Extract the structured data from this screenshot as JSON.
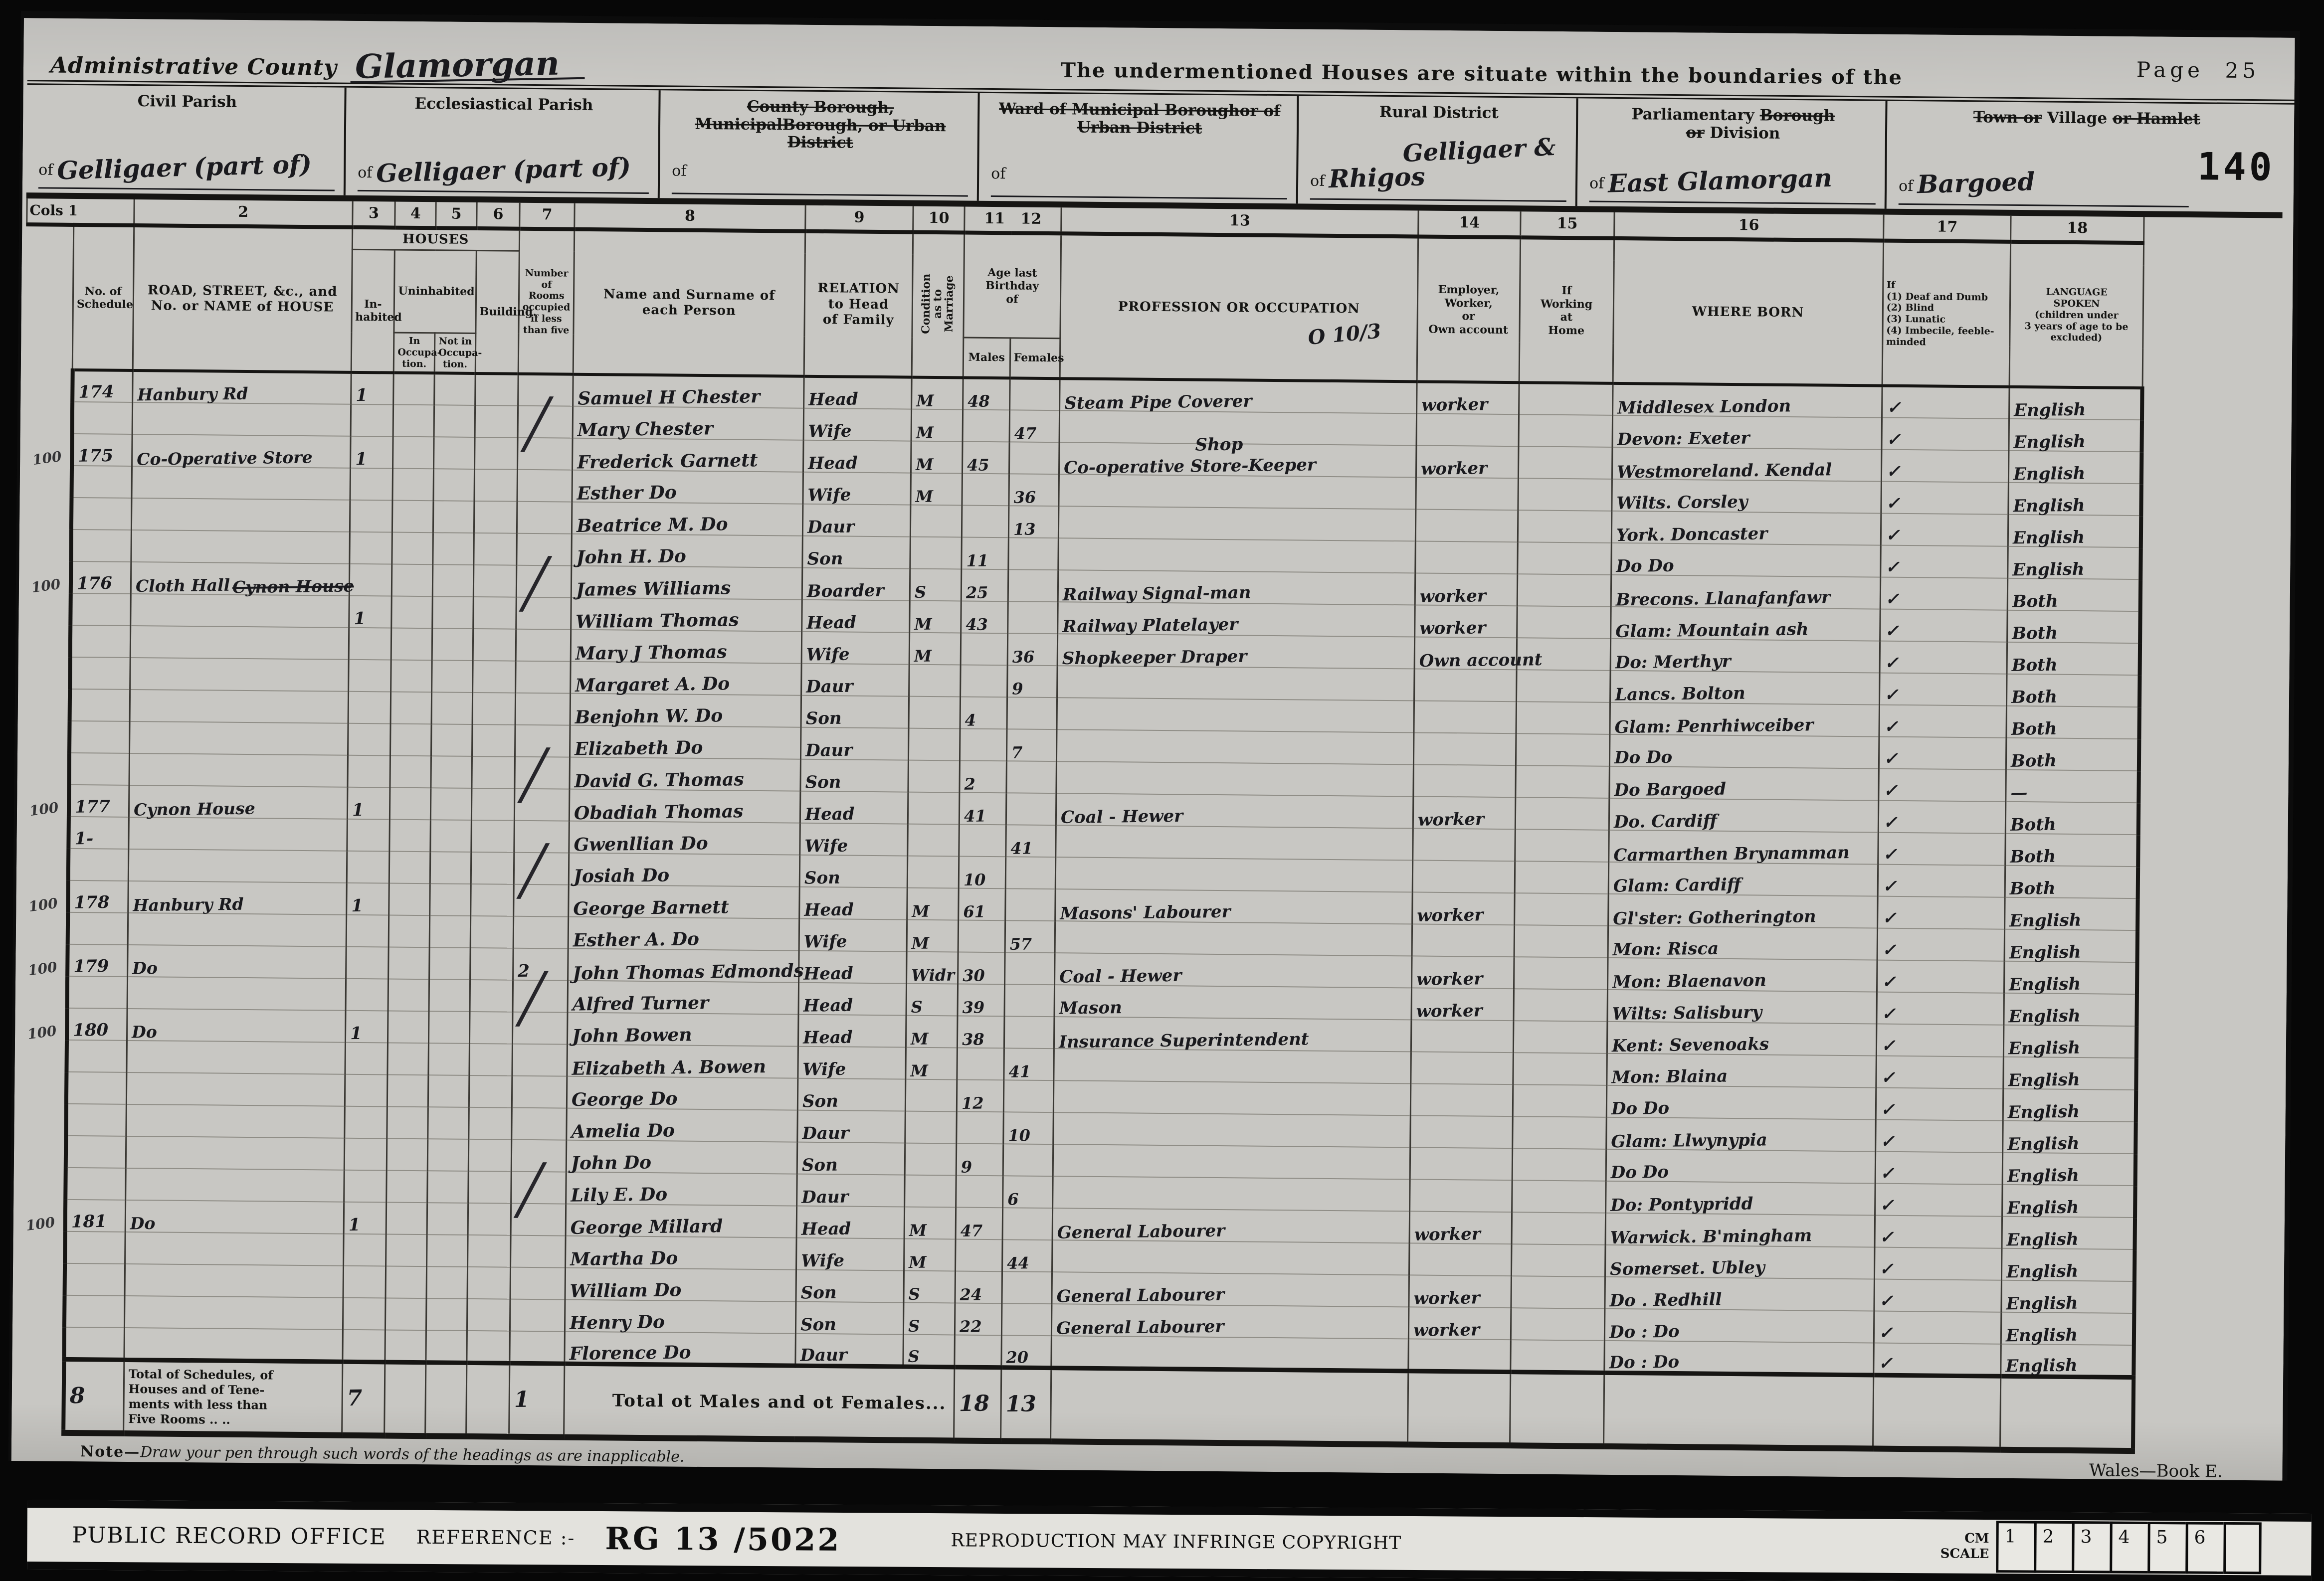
{
  "colors": {
    "paper": "#c8c7c3",
    "ink": "#1a1a1e",
    "print": "#141412"
  },
  "header": {
    "admin_county_label": "Administrative County",
    "admin_county_value": "Glamorgan",
    "undermentioned": "The undermentioned Houses are situate within the boundaries of the",
    "page_label": "Page",
    "page_number": "25",
    "stamp": "140"
  },
  "boxes": {
    "civil_parish": {
      "label": "Civil Parish",
      "of": "of",
      "value": "Gelligaer (part of)"
    },
    "eccl_parish": {
      "label": "Ecclesiastical Parish",
      "of": "of",
      "value": "Gelligaer (part of)"
    },
    "county_borough": {
      "label_lines": [
        [
          "County Borough, Municipal",
          true
        ],
        [
          "Borough, or Urban District",
          true
        ]
      ],
      "of": "of",
      "value": ""
    },
    "ward": {
      "label_lines": [
        [
          "Ward of Municipal Borough",
          true
        ],
        [
          "or of Urban District",
          true
        ]
      ],
      "of": "of",
      "value": ""
    },
    "rural_district": {
      "label": "Rural District",
      "of": "of",
      "value": "Gelligaer &",
      "value2": "Rhigos"
    },
    "parliamentary": {
      "segments": [
        [
          "Parliamentary ",
          false
        ],
        [
          "Borough",
          true
        ],
        [
          "\n",
          false
        ],
        [
          "or",
          true
        ],
        [
          " Division",
          false
        ]
      ],
      "of": "of",
      "value": "East Glamorgan"
    },
    "town": {
      "segments": [
        [
          "Town or",
          true
        ],
        [
          " Village ",
          false
        ],
        [
          "or Hamlet",
          true
        ]
      ],
      "of": "of",
      "value": "Bargoed"
    }
  },
  "columns": {
    "cols_label": "Cols 1",
    "numbers": [
      "2",
      "3",
      "4",
      "5",
      "6",
      "7",
      "8",
      "9",
      "10",
      "11",
      "12",
      "13",
      "14",
      "15",
      "16",
      "17",
      "18"
    ],
    "schedule": "No. of\nSchedule",
    "road": "ROAD, STREET, &c., and\nNo. or NAME of HOUSE",
    "houses": "HOUSES",
    "inhabited": "In-\nhabited",
    "uninhabited": "Uninhabited",
    "in_occupation": "In\nOccupa-\ntion.",
    "not_in_occupation": "Not in\nOccupa-\ntion.",
    "building": "Building.",
    "rooms": "Number\nof Rooms\noccupied\nif less\nthan five",
    "name": "Name and Surname of\neach Person",
    "relation": "RELATION\nto Head\nof Family",
    "condition": "Condition\nas to\nMarriage",
    "age": "Age last\nBirthday\nof",
    "males": "Males",
    "females": "Females",
    "profession": "PROFESSION OR OCCUPATION",
    "employer": "Employer,\nWorker,\nor\nOwn account",
    "home": "If\nWorking\nat\nHome",
    "born": "WHERE BORN",
    "infirmity": "If\n(1) Deaf and Dumb\n(2) Blind\n(3) Lunatic\n(4) Imbecile, feeble-\nminded",
    "language": "LANGUAGE\nSPOKEN\n(children under\n3 years of age to be\nexcluded)"
  },
  "stray_mark": "O 10/3",
  "rows": [
    {
      "sched": "174",
      "house": "Hanbury Rd",
      "inh": "1",
      "name": "Samuel H Chester",
      "rel": "Head",
      "cond": "M",
      "am": "48",
      "af": "",
      "occ": "Steam Pipe Coverer",
      "emp": "worker",
      "born": "Middlesex London",
      "tick": "✓",
      "lang": "English"
    },
    {
      "slash": true,
      "name": "Mary Chester",
      "rel": "Wife",
      "cond": "M",
      "af": "47",
      "born": "Devon: Exeter",
      "tick": "✓",
      "lang": "English"
    },
    {
      "m": "100",
      "sched": "175",
      "house": "Co-Operative Store",
      "inh": "1",
      "name": "Frederick Garnett",
      "rel": "Head",
      "cond": "M",
      "am": "45",
      "occ": "Co-operative Store-Keeper",
      "occIns": "Shop",
      "emp": "worker",
      "born": "Westmoreland. Kendal",
      "tick": "✓",
      "lang": "English"
    },
    {
      "name": "Esther Do",
      "rel": "Wife",
      "cond": "M",
      "af": "36",
      "born": "Wilts. Corsley",
      "tick": "✓",
      "lang": "English"
    },
    {
      "name": "Beatrice M. Do",
      "rel": "Daur",
      "af": "13",
      "born": "York. Doncaster",
      "tick": "✓",
      "lang": "English"
    },
    {
      "name": "John H. Do",
      "rel": "Son",
      "am": "11",
      "born": "Do        Do",
      "tick": "✓",
      "lang": "English"
    },
    {
      "m": "100",
      "sched": "176",
      "house": "Cloth Hall",
      "houseStruck": "Cynon House",
      "slash": true,
      "name": "James Williams",
      "rel": "Boarder",
      "cond": "S",
      "am": "25",
      "occ": "Railway Signal-man",
      "emp": "worker",
      "born": "Brecons. Llanafanfawr",
      "tick": "✓",
      "lang": "Both"
    },
    {
      "inh": "1",
      "name": "William Thomas",
      "rel": "Head",
      "cond": "M",
      "am": "43",
      "occ": "Railway Platelayer",
      "emp": "worker",
      "born": "Glam: Mountain ash",
      "tick": "✓",
      "lang": "Both"
    },
    {
      "name": "Mary J Thomas",
      "rel": "Wife",
      "cond": "M",
      "af": "36",
      "occ": "Shopkeeper Draper",
      "emp": "Own account",
      "born": "Do: Merthyr",
      "tick": "✓",
      "lang": "Both"
    },
    {
      "name": "Margaret A. Do",
      "rel": "Daur",
      "af": "9",
      "born": "Lancs. Bolton",
      "tick": "✓",
      "lang": "Both"
    },
    {
      "name": "Benjohn W. Do",
      "rel": "Son",
      "am": "4",
      "born": "Glam: Penrhiwceiber",
      "tick": "✓",
      "lang": "Both"
    },
    {
      "name": "Elizabeth Do",
      "rel": "Daur",
      "af": "7",
      "born": "Do        Do",
      "tick": "✓",
      "lang": "Both"
    },
    {
      "slash": true,
      "name": "David G. Thomas",
      "rel": "Son",
      "am": "2",
      "born": "Do     Bargoed",
      "tick": "✓",
      "lang": "—"
    },
    {
      "m": "100",
      "sched": "177",
      "house": "Cynon House",
      "inh": "1",
      "name": "Obadiah Thomas",
      "rel": "Head",
      "am": "41",
      "occ": "Coal - Hewer",
      "emp": "worker",
      "born": "Do.   Cardiff",
      "tick": "✓",
      "lang": "Both"
    },
    {
      "sched": "1-",
      "name": "Gwenllian Do",
      "rel": "Wife",
      "af": "41",
      "born": "Carmarthen Brynamman",
      "tick": "✓",
      "lang": "Both"
    },
    {
      "slash": true,
      "name": "Josiah Do",
      "rel": "Son",
      "am": "10",
      "born": "Glam: Cardiff",
      "tick": "✓",
      "lang": "Both"
    },
    {
      "m": "100",
      "sched": "178",
      "house": "Hanbury Rd",
      "inh": "1",
      "name": "George Barnett",
      "rel": "Head",
      "cond": "M",
      "am": "61",
      "occ": "Masons' Labourer",
      "emp": "worker",
      "born": "Gl'ster: Gotherington",
      "tick": "✓",
      "lang": "English"
    },
    {
      "name": "Esther A. Do",
      "rel": "Wife",
      "cond": "M",
      "af": "57",
      "born": "Mon: Risca",
      "tick": "✓",
      "lang": "English"
    },
    {
      "m": "100",
      "sched": "179",
      "house": "Do",
      "rooms": "2",
      "name": "John Thomas Edmonds",
      "rel": "Head",
      "cond": "Widr",
      "am": "30",
      "occ": "Coal - Hewer",
      "emp": "worker",
      "born": "Mon: Blaenavon",
      "tick": "✓",
      "lang": "English"
    },
    {
      "slash": true,
      "name": "Alfred Turner",
      "rel": "Head",
      "cond": "S",
      "am": "39",
      "occ": "Mason",
      "emp": "worker",
      "born": "Wilts: Salisbury",
      "tick": "✓",
      "lang": "English"
    },
    {
      "m": "100",
      "sched": "180",
      "house": "Do",
      "inh": "1",
      "name": "John Bowen",
      "rel": "Head",
      "cond": "M",
      "am": "38",
      "occ": "Insurance Superintendent",
      "born": "Kent: Sevenoaks",
      "tick": "✓",
      "lang": "English"
    },
    {
      "name": "Elizabeth A. Bowen",
      "rel": "Wife",
      "cond": "M",
      "af": "41",
      "born": "Mon: Blaina",
      "tick": "✓",
      "lang": "English"
    },
    {
      "name": "George Do",
      "rel": "Son",
      "am": "12",
      "born": "Do        Do",
      "tick": "✓",
      "lang": "English"
    },
    {
      "name": "Amelia Do",
      "rel": "Daur",
      "af": "10",
      "born": "Glam: Llwynypia",
      "tick": "✓",
      "lang": "English"
    },
    {
      "name": "John Do",
      "rel": "Son",
      "am": "9",
      "born": "Do        Do",
      "tick": "✓",
      "lang": "English"
    },
    {
      "slash": true,
      "name": "Lily E. Do",
      "rel": "Daur",
      "af": "6",
      "born": "Do: Pontypridd",
      "tick": "✓",
      "lang": "English"
    },
    {
      "m": "100",
      "sched": "181",
      "house": "Do",
      "inh": "1",
      "name": "George Millard",
      "rel": "Head",
      "cond": "M",
      "am": "47",
      "occ": "General Labourer",
      "emp": "worker",
      "born": "Warwick. B'mingham",
      "tick": "✓",
      "lang": "English"
    },
    {
      "name": "Martha Do",
      "rel": "Wife",
      "cond": "M",
      "af": "44",
      "born": "Somerset. Ubley",
      "tick": "✓",
      "lang": "English"
    },
    {
      "name": "William Do",
      "rel": "Son",
      "cond": "S",
      "am": "24",
      "occ": "General Labourer",
      "emp": "worker",
      "born": "Do  .  Redhill",
      "tick": "✓",
      "lang": "English"
    },
    {
      "name": "Henry Do",
      "rel": "Son",
      "cond": "S",
      "am": "22",
      "occ": "General Labourer",
      "emp": "worker",
      "born": "Do  :  Do",
      "tick": "✓",
      "lang": "English"
    },
    {
      "name": "Florence Do",
      "rel": "Daur",
      "cond": "S",
      "af": "20",
      "born": "Do  :  Do",
      "tick": "✓",
      "lang": "English"
    }
  ],
  "totals": {
    "sched": "8",
    "label": "Total of Schedules, of\nHouses and of Tene-\nments with less than\nFive Rooms ..        ..",
    "inhabited": "7",
    "rooms": "1",
    "males_females_label": "Total ot Males and ot Females...",
    "males": "18",
    "females": "13"
  },
  "footer": {
    "note": "Draw your pen through such words of the headings as are inapplicable.",
    "note_prefix": "Note—",
    "book": "Wales—Book E."
  },
  "ribbon": {
    "office": "PUBLIC RECORD OFFICE",
    "reference_label": "REFERENCE :-",
    "reference_value": "RG 13 /5022",
    "warning": "REPRODUCTION MAY INFRINGE COPYRIGHT",
    "scale_label": "CM\nSCALE",
    "ruler": [
      "1",
      "2",
      "3",
      "4",
      "5",
      "6",
      ""
    ]
  }
}
